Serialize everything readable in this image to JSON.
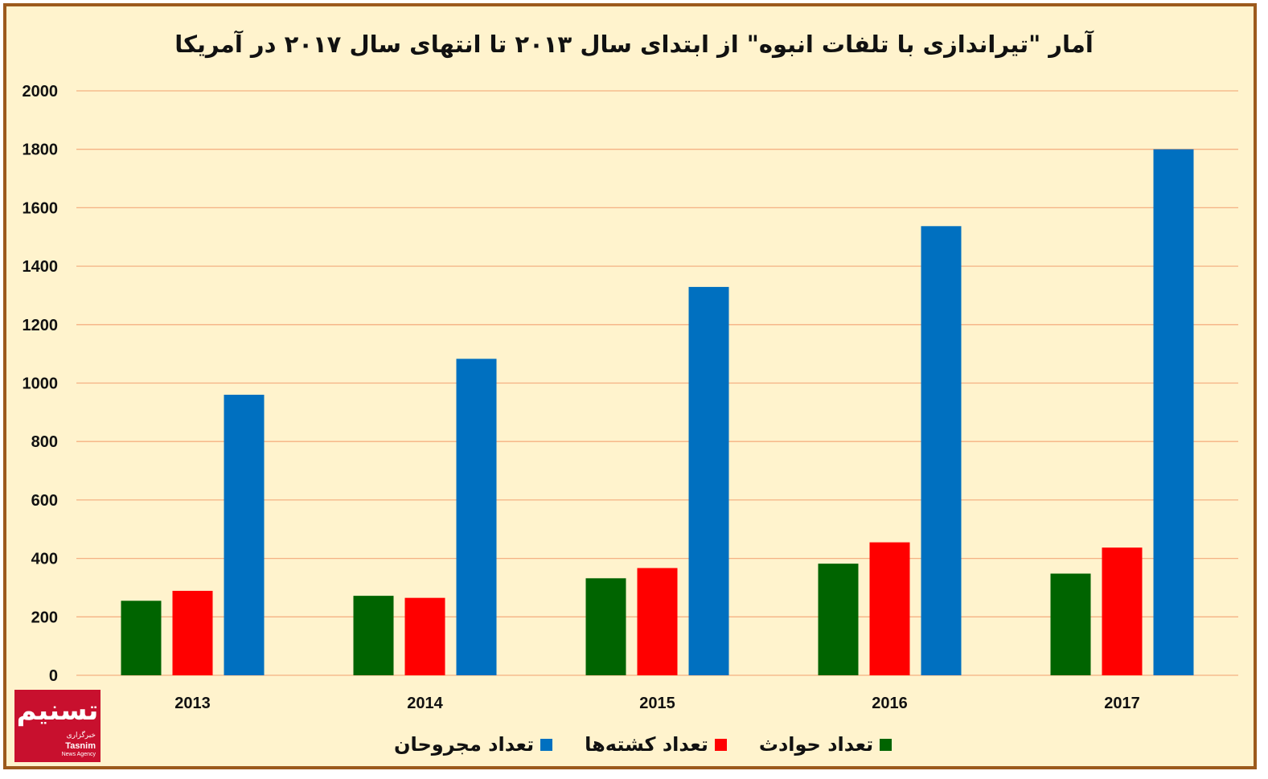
{
  "chart_data": {
    "type": "bar",
    "title": "آمار \"تیراندازی با تلفات انبوه\" از ابتدای سال ۲۰۱۳ تا انتهای سال ۲۰۱۷ در آمریکا",
    "categories": [
      "2013",
      "2014",
      "2015",
      "2016",
      "2017"
    ],
    "series": [
      {
        "name": "تعداد حوادث",
        "color": "#006400",
        "values": [
          255,
          272,
          332,
          382,
          348
        ]
      },
      {
        "name": "تعداد کشته‌ها",
        "color": "#ff0000",
        "values": [
          289,
          265,
          367,
          455,
          437
        ]
      },
      {
        "name": "تعداد مجروحان",
        "color": "#0070c0",
        "values": [
          960,
          1083,
          1329,
          1537,
          1800
        ]
      }
    ],
    "ylim": [
      0,
      2000
    ],
    "yticks": [
      0,
      200,
      400,
      600,
      800,
      1000,
      1200,
      1400,
      1600,
      1800,
      2000
    ],
    "grid": true,
    "gridColor": "#f4b183",
    "legend_position": "bottom"
  },
  "logo": {
    "glyph": "تسنیم",
    "subtitle": "خبرگزاری",
    "name": "Tasnim",
    "tagline": "News Agency"
  }
}
